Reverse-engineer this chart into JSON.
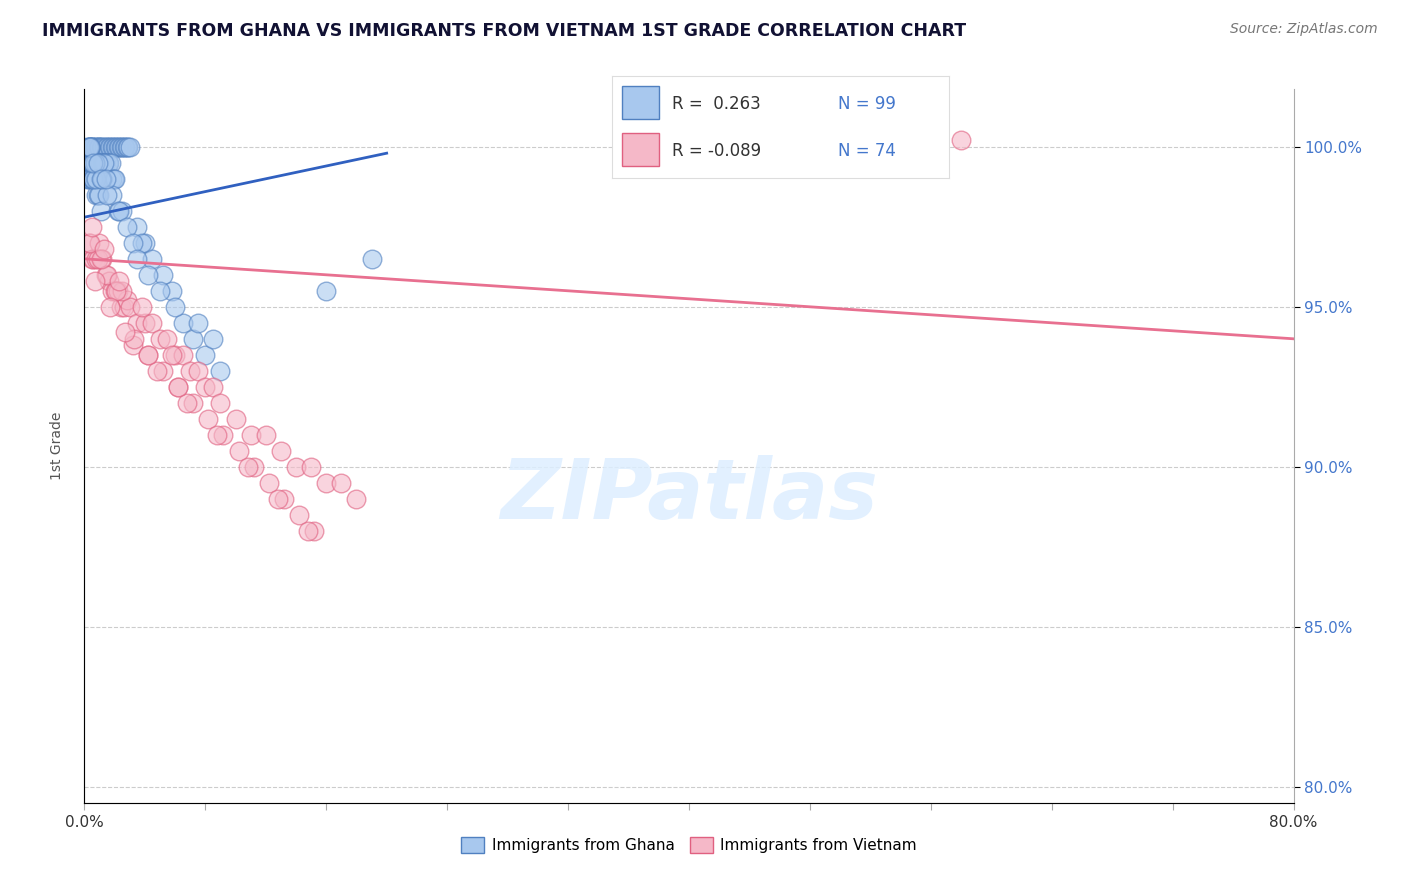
{
  "title": "IMMIGRANTS FROM GHANA VS IMMIGRANTS FROM VIETNAM 1ST GRADE CORRELATION CHART",
  "source": "Source: ZipAtlas.com",
  "ylabel": "1st Grade",
  "xlim": [
    0.0,
    80.0
  ],
  "ylim": [
    79.5,
    101.8
  ],
  "yticks": [
    80.0,
    85.0,
    90.0,
    95.0,
    100.0
  ],
  "color_ghana": "#a8c8ee",
  "color_vietnam": "#f5b8c8",
  "color_ghana_edge": "#5080c0",
  "color_vietnam_edge": "#e06080",
  "color_ghana_line": "#3060c0",
  "color_vietnam_line": "#e87090",
  "color_ytick": "#4477cc",
  "watermark_color": "#ddeeff",
  "ghana_x": [
    0.2,
    0.3,
    0.4,
    0.5,
    0.5,
    0.6,
    0.7,
    0.8,
    0.9,
    1.0,
    1.0,
    1.1,
    1.2,
    1.3,
    1.4,
    1.5,
    1.6,
    1.7,
    1.8,
    1.9,
    2.0,
    2.1,
    2.2,
    2.3,
    2.4,
    2.5,
    2.6,
    2.7,
    2.8,
    2.9,
    3.0,
    0.15,
    0.25,
    0.35,
    0.45,
    0.55,
    0.65,
    0.75,
    0.85,
    0.95,
    1.05,
    1.15,
    1.25,
    1.35,
    1.45,
    1.55,
    1.65,
    1.75,
    1.85,
    1.95,
    0.2,
    0.3,
    0.4,
    0.5,
    0.6,
    0.7,
    0.8,
    0.9,
    1.0,
    1.1,
    3.5,
    4.0,
    4.5,
    3.8,
    5.2,
    5.8,
    2.2,
    2.5,
    1.3,
    2.0,
    1.8,
    0.6,
    0.5,
    0.4,
    0.7,
    0.8,
    1.2,
    1.5,
    2.3,
    2.8,
    3.2,
    6.5,
    7.2,
    8.0,
    9.0,
    3.5,
    4.2,
    5.0,
    6.0,
    7.5,
    8.5,
    16.0,
    19.0,
    0.3,
    0.4,
    0.6,
    0.9,
    1.1,
    1.4
  ],
  "ghana_y": [
    100.0,
    100.0,
    100.0,
    100.0,
    100.0,
    100.0,
    100.0,
    100.0,
    100.0,
    100.0,
    100.0,
    100.0,
    100.0,
    100.0,
    100.0,
    100.0,
    100.0,
    100.0,
    100.0,
    100.0,
    100.0,
    100.0,
    100.0,
    100.0,
    100.0,
    100.0,
    100.0,
    100.0,
    100.0,
    100.0,
    100.0,
    99.5,
    99.5,
    99.5,
    99.5,
    99.5,
    99.5,
    99.5,
    99.5,
    99.5,
    99.5,
    99.5,
    99.5,
    99.5,
    99.5,
    99.5,
    99.5,
    99.5,
    99.0,
    99.0,
    99.0,
    99.0,
    99.0,
    99.0,
    99.0,
    99.0,
    98.5,
    98.5,
    98.5,
    98.0,
    97.5,
    97.0,
    96.5,
    97.0,
    96.0,
    95.5,
    98.0,
    98.0,
    99.5,
    99.0,
    98.5,
    99.0,
    99.5,
    100.0,
    99.5,
    99.0,
    99.0,
    98.5,
    98.0,
    97.5,
    97.0,
    94.5,
    94.0,
    93.5,
    93.0,
    96.5,
    96.0,
    95.5,
    95.0,
    94.5,
    94.0,
    95.5,
    96.5,
    100.0,
    100.0,
    99.5,
    99.5,
    99.0,
    99.0
  ],
  "vietnam_x": [
    0.3,
    0.5,
    0.6,
    0.8,
    1.0,
    1.2,
    1.4,
    1.6,
    1.8,
    2.0,
    2.2,
    2.4,
    2.6,
    2.8,
    3.0,
    3.5,
    4.0,
    4.5,
    5.0,
    5.5,
    6.0,
    6.5,
    7.0,
    7.5,
    8.0,
    8.5,
    9.0,
    10.0,
    11.0,
    12.0,
    13.0,
    14.0,
    15.0,
    16.0,
    17.0,
    18.0,
    3.2,
    4.2,
    5.2,
    6.2,
    7.2,
    8.2,
    9.2,
    10.2,
    11.2,
    12.2,
    13.2,
    14.2,
    15.2,
    0.9,
    1.5,
    2.5,
    3.8,
    5.8,
    0.4,
    1.1,
    2.1,
    3.3,
    4.8,
    6.8,
    8.8,
    10.8,
    12.8,
    14.8,
    0.7,
    1.7,
    2.7,
    4.2,
    6.2,
    58.0,
    0.5,
    1.3,
    2.3
  ],
  "vietnam_y": [
    97.0,
    96.5,
    96.5,
    96.5,
    97.0,
    96.5,
    96.0,
    95.8,
    95.5,
    95.5,
    95.5,
    95.0,
    95.0,
    95.2,
    95.0,
    94.5,
    94.5,
    94.5,
    94.0,
    94.0,
    93.5,
    93.5,
    93.0,
    93.0,
    92.5,
    92.5,
    92.0,
    91.5,
    91.0,
    91.0,
    90.5,
    90.0,
    90.0,
    89.5,
    89.5,
    89.0,
    93.8,
    93.5,
    93.0,
    92.5,
    92.0,
    91.5,
    91.0,
    90.5,
    90.0,
    89.5,
    89.0,
    88.5,
    88.0,
    96.5,
    96.0,
    95.5,
    95.0,
    93.5,
    97.0,
    96.5,
    95.5,
    94.0,
    93.0,
    92.0,
    91.0,
    90.0,
    89.0,
    88.0,
    95.8,
    95.0,
    94.2,
    93.5,
    92.5,
    100.2,
    97.5,
    96.8,
    95.8
  ],
  "ghana_trend": [
    0.0,
    20.0,
    97.8,
    99.8
  ],
  "vietnam_trend": [
    0.0,
    80.0,
    96.5,
    94.0
  ],
  "xticks": [
    0.0,
    8.0,
    16.0,
    24.0,
    32.0,
    40.0,
    48.0,
    56.0,
    64.0,
    72.0,
    80.0
  ],
  "xtick_labels_show": {
    "0.0": "0.0%",
    "80.0": "80.0%"
  }
}
